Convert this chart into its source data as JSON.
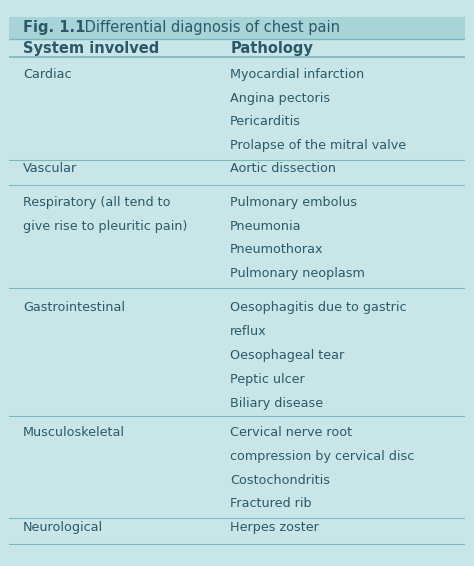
{
  "title_bold": "Fig. 1.1",
  "title_normal": " Differential diagnosis of chest pain",
  "header_col1": "System involved",
  "header_col2": "Pathology",
  "rows": [
    {
      "system": "Cardiac",
      "pathology": "Myocardial infarction\nAngina pectoris\nPericarditis\nProlapse of the mitral valve"
    },
    {
      "system": "Vascular",
      "pathology": "Aortic dissection"
    },
    {
      "system": "Respiratory (all tend to\ngive rise to pleuritic pain)",
      "pathology": "Pulmonary embolus\nPneumonia\nPneumothorax\nPulmonary neoplasm"
    },
    {
      "system": "Gastrointestinal",
      "pathology": "Oesophagitis due to gastric\nreflux\nOesophageal tear\nPeptic ulcer\nBiliary disease"
    },
    {
      "system": "Musculoskeletal",
      "pathology": "Cervical nerve root\ncompression by cervical disc\nCostochondritis\nFractured rib"
    },
    {
      "system": "Neurological",
      "pathology": "Herpes zoster"
    }
  ],
  "bg_color": "#c8e6e8",
  "title_bg_color": "#a8d4d8",
  "text_color": "#2a5a6a",
  "divider_color": "#7ab8c0",
  "col_split": 0.455,
  "font_size": 9.2,
  "header_font_size": 10.5
}
